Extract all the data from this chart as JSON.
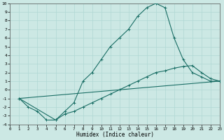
{
  "xlabel": "Humidex (Indice chaleur)",
  "bg_color": "#cce8e4",
  "line_color": "#1a6e65",
  "grid_color": "#b0d8d4",
  "series1_x": [
    1,
    2,
    3,
    4,
    5,
    6,
    7,
    8,
    9,
    10,
    11,
    12,
    13,
    14,
    15,
    16,
    17,
    18,
    19,
    20,
    21,
    22,
    23
  ],
  "series1_y": [
    -1,
    -2,
    -2.5,
    -3.5,
    -3.5,
    -2.5,
    -1.5,
    1,
    2,
    3.5,
    5,
    6,
    7,
    8.5,
    9.5,
    10,
    9.5,
    6,
    3.5,
    2,
    1.5,
    1,
    1
  ],
  "series2_x": [
    1,
    5,
    6,
    7,
    8,
    9,
    10,
    11,
    12,
    13,
    14,
    15,
    16,
    17,
    18,
    19,
    20,
    21,
    22,
    23
  ],
  "series2_y": [
    -1,
    -3.5,
    -2.8,
    -2.5,
    -2.0,
    -1.5,
    -1.0,
    -0.5,
    0.0,
    0.5,
    1.0,
    1.5,
    2.0,
    2.2,
    2.5,
    2.7,
    2.8,
    2.0,
    1.3,
    1.0
  ],
  "series3_x": [
    1,
    23
  ],
  "series3_y": [
    -1.0,
    1.0
  ],
  "xlim": [
    0,
    23
  ],
  "ylim": [
    -4,
    10
  ],
  "xticks": [
    0,
    1,
    2,
    3,
    4,
    5,
    6,
    7,
    8,
    9,
    10,
    11,
    12,
    13,
    14,
    15,
    16,
    17,
    18,
    19,
    20,
    21,
    22,
    23
  ],
  "yticks": [
    -4,
    -3,
    -2,
    -1,
    0,
    1,
    2,
    3,
    4,
    5,
    6,
    7,
    8,
    9,
    10
  ]
}
